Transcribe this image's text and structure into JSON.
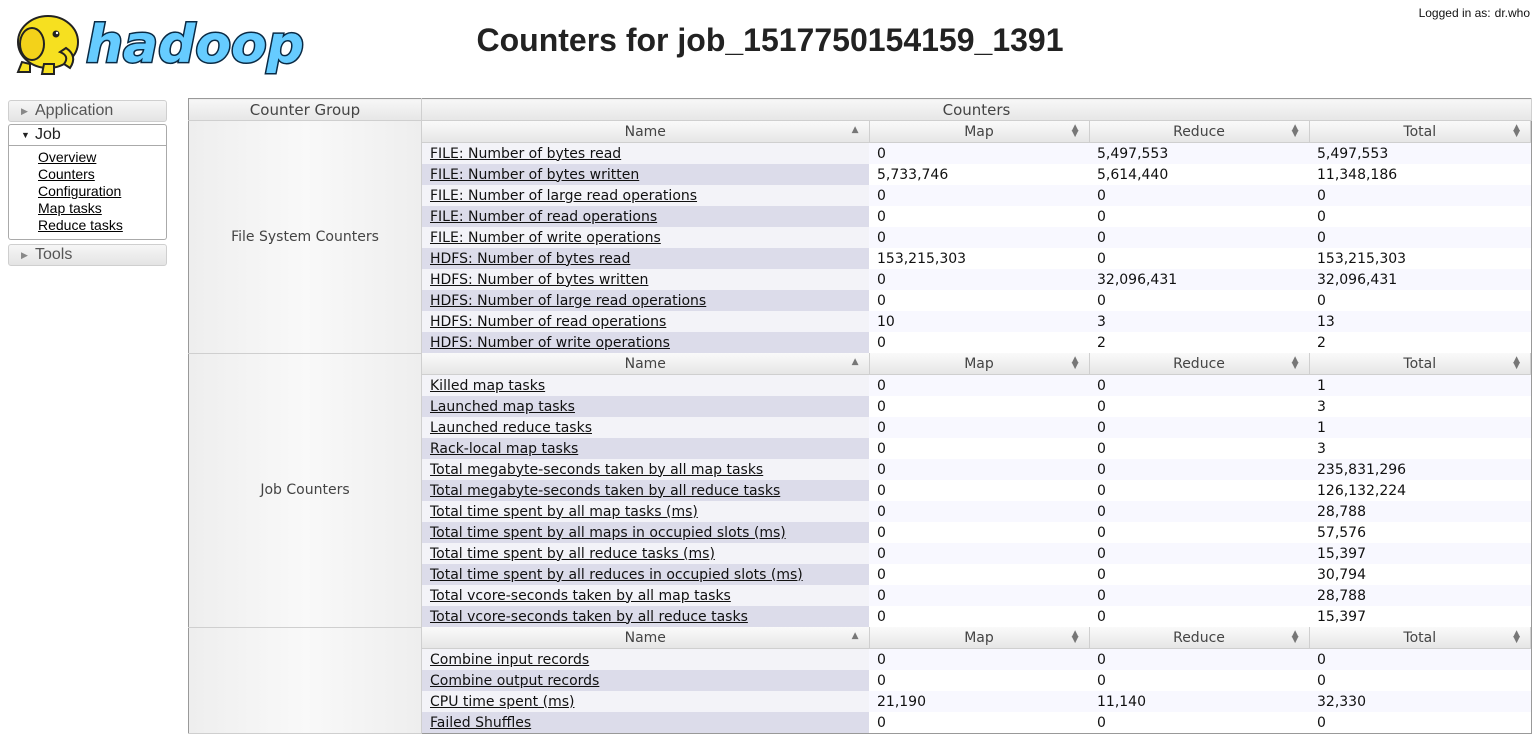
{
  "header": {
    "logo_text": "hadoop",
    "title": "Counters for job_1517750154159_1391",
    "logged_in_label": "Logged in as:",
    "logged_in_user": "dr.who"
  },
  "sidebar": {
    "application_label": "Application",
    "job_label": "Job",
    "job_links": [
      "Overview",
      "Counters",
      "Configuration",
      "Map tasks",
      "Reduce tasks"
    ],
    "tools_label": "Tools"
  },
  "table": {
    "group_header": "Counter Group",
    "counters_header": "Counters",
    "columns": [
      "Name",
      "Map",
      "Reduce",
      "Total"
    ],
    "groups": [
      {
        "name": "File System Counters",
        "rows": [
          [
            "FILE: Number of bytes read",
            "0",
            "5,497,553",
            "5,497,553"
          ],
          [
            "FILE: Number of bytes written",
            "5,733,746",
            "5,614,440",
            "11,348,186"
          ],
          [
            "FILE: Number of large read operations",
            "0",
            "0",
            "0"
          ],
          [
            "FILE: Number of read operations",
            "0",
            "0",
            "0"
          ],
          [
            "FILE: Number of write operations",
            "0",
            "0",
            "0"
          ],
          [
            "HDFS: Number of bytes read",
            "153,215,303",
            "0",
            "153,215,303"
          ],
          [
            "HDFS: Number of bytes written",
            "0",
            "32,096,431",
            "32,096,431"
          ],
          [
            "HDFS: Number of large read operations",
            "0",
            "0",
            "0"
          ],
          [
            "HDFS: Number of read operations",
            "10",
            "3",
            "13"
          ],
          [
            "HDFS: Number of write operations",
            "0",
            "2",
            "2"
          ]
        ]
      },
      {
        "name": "Job Counters",
        "rows": [
          [
            "Killed map tasks",
            "0",
            "0",
            "1"
          ],
          [
            "Launched map tasks",
            "0",
            "0",
            "3"
          ],
          [
            "Launched reduce tasks",
            "0",
            "0",
            "1"
          ],
          [
            "Rack-local map tasks",
            "0",
            "0",
            "3"
          ],
          [
            "Total megabyte-seconds taken by all map tasks",
            "0",
            "0",
            "235,831,296"
          ],
          [
            "Total megabyte-seconds taken by all reduce tasks",
            "0",
            "0",
            "126,132,224"
          ],
          [
            "Total time spent by all map tasks (ms)",
            "0",
            "0",
            "28,788"
          ],
          [
            "Total time spent by all maps in occupied slots (ms)",
            "0",
            "0",
            "57,576"
          ],
          [
            "Total time spent by all reduce tasks (ms)",
            "0",
            "0",
            "15,397"
          ],
          [
            "Total time spent by all reduces in occupied slots (ms)",
            "0",
            "0",
            "30,794"
          ],
          [
            "Total vcore-seconds taken by all map tasks",
            "0",
            "0",
            "28,788"
          ],
          [
            "Total vcore-seconds taken by all reduce tasks",
            "0",
            "0",
            "15,397"
          ]
        ]
      },
      {
        "name": "",
        "rows": [
          [
            "Combine input records",
            "0",
            "0",
            "0"
          ],
          [
            "Combine output records",
            "0",
            "0",
            "0"
          ],
          [
            "CPU time spent (ms)",
            "21,190",
            "11,140",
            "32,330"
          ],
          [
            "Failed Shuffles",
            "0",
            "0",
            "0"
          ]
        ]
      }
    ]
  }
}
